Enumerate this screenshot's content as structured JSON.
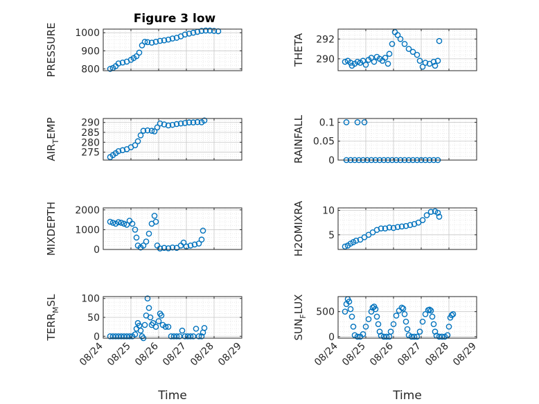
{
  "chart_data": [
    {
      "id": "pressure",
      "type": "scatter",
      "title": "Figure 3 low",
      "ylabel": [
        "PRESSURE"
      ],
      "xlabel": "",
      "ylim": [
        790,
        1020
      ],
      "yticks": [
        800,
        900,
        1000
      ],
      "xlim": [
        0,
        5
      ],
      "xticks": [
        0,
        1,
        2,
        3,
        4,
        5
      ],
      "xticklabels": [],
      "grid": true,
      "points": [
        [
          0.25,
          800
        ],
        [
          0.35,
          805
        ],
        [
          0.45,
          815
        ],
        [
          0.55,
          830
        ],
        [
          0.7,
          835
        ],
        [
          0.85,
          840
        ],
        [
          1.0,
          850
        ],
        [
          1.1,
          860
        ],
        [
          1.2,
          870
        ],
        [
          1.3,
          890
        ],
        [
          1.4,
          930
        ],
        [
          1.5,
          950
        ],
        [
          1.6,
          948
        ],
        [
          1.75,
          945
        ],
        [
          1.9,
          950
        ],
        [
          2.05,
          955
        ],
        [
          2.2,
          958
        ],
        [
          2.35,
          962
        ],
        [
          2.5,
          968
        ],
        [
          2.65,
          972
        ],
        [
          2.8,
          980
        ],
        [
          2.95,
          990
        ],
        [
          3.1,
          995
        ],
        [
          3.25,
          1000
        ],
        [
          3.4,
          1005
        ],
        [
          3.55,
          1010
        ],
        [
          3.7,
          1012
        ],
        [
          3.85,
          1012
        ],
        [
          4.0,
          1010
        ],
        [
          4.15,
          1008
        ]
      ]
    },
    {
      "id": "theta",
      "type": "scatter",
      "title": "",
      "ylabel": [
        "THETA"
      ],
      "xlabel": "",
      "ylim": [
        288.8,
        293
      ],
      "yticks": [
        290,
        292
      ],
      "xlim": [
        0,
        5
      ],
      "xticks": [
        0,
        1,
        2,
        3,
        4,
        5
      ],
      "xticklabels": [],
      "grid": true,
      "points": [
        [
          0.25,
          289.7
        ],
        [
          0.35,
          289.8
        ],
        [
          0.45,
          289.6
        ],
        [
          0.5,
          289.3
        ],
        [
          0.6,
          289.5
        ],
        [
          0.7,
          289.7
        ],
        [
          0.8,
          289.6
        ],
        [
          0.9,
          289.8
        ],
        [
          1.0,
          289.4
        ],
        [
          1.1,
          289.9
        ],
        [
          1.2,
          290.1
        ],
        [
          1.3,
          289.7
        ],
        [
          1.4,
          290.2
        ],
        [
          1.5,
          290.0
        ],
        [
          1.6,
          289.8
        ],
        [
          1.7,
          290.1
        ],
        [
          1.8,
          289.5
        ],
        [
          1.85,
          290.5
        ],
        [
          1.95,
          291.5
        ],
        [
          2.05,
          292.7
        ],
        [
          2.15,
          292.4
        ],
        [
          2.25,
          292.0
        ],
        [
          2.4,
          291.5
        ],
        [
          2.55,
          291.0
        ],
        [
          2.7,
          290.7
        ],
        [
          2.85,
          290.4
        ],
        [
          2.95,
          289.8
        ],
        [
          3.05,
          289.2
        ],
        [
          3.15,
          289.6
        ],
        [
          3.3,
          289.5
        ],
        [
          3.45,
          289.7
        ],
        [
          3.5,
          289.3
        ],
        [
          3.6,
          289.8
        ],
        [
          3.65,
          291.8
        ]
      ]
    },
    {
      "id": "airtemp",
      "type": "scatter",
      "title": "",
      "ylabel": [
        "AIR",
        "T",
        "EMP"
      ],
      "xlabel": "",
      "ylim": [
        271,
        292
      ],
      "yticks": [
        275,
        280,
        285,
        290
      ],
      "xlim": [
        0,
        5
      ],
      "xticks": [
        0,
        1,
        2,
        3,
        4,
        5
      ],
      "xticklabels": [],
      "grid": true,
      "points": [
        [
          0.25,
          272.5
        ],
        [
          0.35,
          273.5
        ],
        [
          0.45,
          274.5
        ],
        [
          0.55,
          275.5
        ],
        [
          0.7,
          276
        ],
        [
          0.85,
          276.5
        ],
        [
          1.0,
          277.5
        ],
        [
          1.15,
          278.5
        ],
        [
          1.25,
          280.5
        ],
        [
          1.35,
          283.5
        ],
        [
          1.45,
          285.8
        ],
        [
          1.6,
          286
        ],
        [
          1.75,
          285.8
        ],
        [
          1.85,
          285.5
        ],
        [
          1.95,
          287.5
        ],
        [
          2.05,
          289.5
        ],
        [
          2.2,
          289
        ],
        [
          2.35,
          288.5
        ],
        [
          2.5,
          288.8
        ],
        [
          2.65,
          289.2
        ],
        [
          2.8,
          289.5
        ],
        [
          2.95,
          289.7
        ],
        [
          3.1,
          290
        ],
        [
          3.25,
          290
        ],
        [
          3.4,
          290.2
        ],
        [
          3.55,
          290.1
        ],
        [
          3.65,
          291
        ]
      ]
    },
    {
      "id": "rainfall",
      "type": "scatter",
      "title": "",
      "ylabel": [
        "RAINFALL"
      ],
      "xlabel": "",
      "ylim": [
        0,
        0.11
      ],
      "yticks": [
        0,
        0.05,
        0.1
      ],
      "xlim": [
        0,
        5
      ],
      "xticks": [
        0,
        1,
        2,
        3,
        4,
        5
      ],
      "xticklabels": [],
      "grid": true,
      "points": [
        [
          0.3,
          0.1
        ],
        [
          0.7,
          0.1
        ],
        [
          0.95,
          0.1
        ],
        [
          0.3,
          0
        ],
        [
          0.45,
          0
        ],
        [
          0.6,
          0
        ],
        [
          0.75,
          0
        ],
        [
          0.9,
          0
        ],
        [
          1.05,
          0
        ],
        [
          1.2,
          0
        ],
        [
          1.35,
          0
        ],
        [
          1.5,
          0
        ],
        [
          1.65,
          0
        ],
        [
          1.8,
          0
        ],
        [
          1.95,
          0
        ],
        [
          2.1,
          0
        ],
        [
          2.25,
          0
        ],
        [
          2.4,
          0
        ],
        [
          2.55,
          0
        ],
        [
          2.7,
          0
        ],
        [
          2.85,
          0
        ],
        [
          3.0,
          0
        ],
        [
          3.15,
          0
        ],
        [
          3.3,
          0
        ],
        [
          3.45,
          0
        ],
        [
          3.6,
          0
        ]
      ]
    },
    {
      "id": "mixdepth",
      "type": "scatter",
      "title": "",
      "ylabel": [
        "MIXDEPTH"
      ],
      "xlabel": "",
      "ylim": [
        0,
        2100
      ],
      "yticks": [
        0,
        1000,
        2000
      ],
      "xlim": [
        0,
        5
      ],
      "xticks": [
        0,
        1,
        2,
        3,
        4,
        5
      ],
      "xticklabels": [],
      "grid": true,
      "points": [
        [
          0.25,
          1400
        ],
        [
          0.35,
          1350
        ],
        [
          0.45,
          1300
        ],
        [
          0.55,
          1380
        ],
        [
          0.65,
          1350
        ],
        [
          0.75,
          1300
        ],
        [
          0.85,
          1250
        ],
        [
          0.95,
          1450
        ],
        [
          1.05,
          1300
        ],
        [
          1.15,
          1000
        ],
        [
          1.2,
          600
        ],
        [
          1.25,
          200
        ],
        [
          1.35,
          100
        ],
        [
          1.45,
          200
        ],
        [
          1.55,
          400
        ],
        [
          1.65,
          800
        ],
        [
          1.75,
          1300
        ],
        [
          1.85,
          1700
        ],
        [
          1.9,
          1400
        ],
        [
          1.95,
          200
        ],
        [
          2.05,
          50
        ],
        [
          2.2,
          80
        ],
        [
          2.35,
          60
        ],
        [
          2.5,
          100
        ],
        [
          2.65,
          80
        ],
        [
          2.8,
          200
        ],
        [
          2.9,
          350
        ],
        [
          3.0,
          150
        ],
        [
          3.15,
          200
        ],
        [
          3.3,
          250
        ],
        [
          3.45,
          300
        ],
        [
          3.55,
          500
        ],
        [
          3.6,
          950
        ]
      ]
    },
    {
      "id": "h2omixra",
      "type": "scatter",
      "title": "",
      "ylabel": [
        "H2OMIXRA"
      ],
      "xlabel": "",
      "ylim": [
        2,
        10.5
      ],
      "yticks": [
        5,
        10
      ],
      "xlim": [
        0,
        5
      ],
      "xticks": [
        0,
        1,
        2,
        3,
        4,
        5
      ],
      "xticklabels": [],
      "grid": true,
      "points": [
        [
          0.25,
          2.6
        ],
        [
          0.35,
          2.8
        ],
        [
          0.45,
          3.2
        ],
        [
          0.55,
          3.5
        ],
        [
          0.65,
          3.8
        ],
        [
          0.8,
          4.0
        ],
        [
          0.95,
          4.5
        ],
        [
          1.1,
          5.0
        ],
        [
          1.25,
          5.5
        ],
        [
          1.4,
          6.0
        ],
        [
          1.55,
          6.3
        ],
        [
          1.7,
          6.3
        ],
        [
          1.85,
          6.5
        ],
        [
          2.0,
          6.4
        ],
        [
          2.15,
          6.6
        ],
        [
          2.3,
          6.7
        ],
        [
          2.45,
          6.8
        ],
        [
          2.6,
          7.0
        ],
        [
          2.75,
          7.2
        ],
        [
          2.9,
          7.5
        ],
        [
          3.05,
          8.0
        ],
        [
          3.2,
          9.0
        ],
        [
          3.35,
          9.7
        ],
        [
          3.5,
          9.8
        ],
        [
          3.6,
          9.5
        ],
        [
          3.65,
          8.7
        ]
      ]
    },
    {
      "id": "terrmsl",
      "type": "scatter",
      "title": "",
      "ylabel": [
        "TERR",
        "M",
        "SL"
      ],
      "xlabel": "Time",
      "ylim": [
        -5,
        105
      ],
      "yticks": [
        0,
        50,
        100
      ],
      "xlim": [
        0,
        5
      ],
      "xticks": [
        0,
        1,
        2,
        3,
        4,
        5
      ],
      "xticklabels": [
        "08/24",
        "08/25",
        "08/26",
        "08/27",
        "08/28",
        "08/29"
      ],
      "grid": true,
      "points": [
        [
          0.25,
          0
        ],
        [
          0.35,
          0
        ],
        [
          0.45,
          0
        ],
        [
          0.55,
          0
        ],
        [
          0.65,
          0
        ],
        [
          0.75,
          0
        ],
        [
          0.85,
          0
        ],
        [
          0.95,
          0
        ],
        [
          1.05,
          0
        ],
        [
          1.15,
          5
        ],
        [
          1.2,
          20
        ],
        [
          1.25,
          35
        ],
        [
          1.3,
          28
        ],
        [
          1.35,
          15
        ],
        [
          1.4,
          0
        ],
        [
          1.45,
          -5
        ],
        [
          1.5,
          30
        ],
        [
          1.55,
          55
        ],
        [
          1.6,
          100
        ],
        [
          1.65,
          75
        ],
        [
          1.7,
          50
        ],
        [
          1.75,
          30
        ],
        [
          1.8,
          35
        ],
        [
          1.9,
          25
        ],
        [
          2.0,
          40
        ],
        [
          2.05,
          60
        ],
        [
          2.1,
          55
        ],
        [
          2.15,
          30
        ],
        [
          2.25,
          25
        ],
        [
          2.35,
          25
        ],
        [
          2.45,
          0
        ],
        [
          2.55,
          0
        ],
        [
          2.65,
          0
        ],
        [
          2.75,
          0
        ],
        [
          2.85,
          15
        ],
        [
          2.95,
          0
        ],
        [
          3.05,
          0
        ],
        [
          3.15,
          0
        ],
        [
          3.25,
          0
        ],
        [
          3.35,
          20
        ],
        [
          3.45,
          0
        ],
        [
          3.55,
          0
        ],
        [
          3.6,
          10
        ],
        [
          3.65,
          22
        ]
      ]
    },
    {
      "id": "sunflux",
      "type": "scatter",
      "title": "",
      "ylabel": [
        "SUN",
        "F",
        "LUX"
      ],
      "xlabel": "Time",
      "ylim": [
        -30,
        800
      ],
      "yticks": [
        0,
        500
      ],
      "xlim": [
        0,
        5
      ],
      "xticks": [
        0,
        1,
        2,
        3,
        4,
        5
      ],
      "xticklabels": [
        "08/24",
        "08/25",
        "08/26",
        "08/27",
        "08/28",
        "08/29"
      ],
      "grid": true,
      "points": [
        [
          0.25,
          500
        ],
        [
          0.3,
          650
        ],
        [
          0.35,
          750
        ],
        [
          0.4,
          700
        ],
        [
          0.45,
          550
        ],
        [
          0.5,
          400
        ],
        [
          0.55,
          200
        ],
        [
          0.6,
          30
        ],
        [
          0.7,
          0
        ],
        [
          0.8,
          0
        ],
        [
          0.9,
          50
        ],
        [
          1.0,
          200
        ],
        [
          1.1,
          350
        ],
        [
          1.2,
          500
        ],
        [
          1.25,
          580
        ],
        [
          1.3,
          600
        ],
        [
          1.35,
          550
        ],
        [
          1.4,
          400
        ],
        [
          1.45,
          250
        ],
        [
          1.5,
          100
        ],
        [
          1.55,
          20
        ],
        [
          1.65,
          0
        ],
        [
          1.75,
          0
        ],
        [
          1.85,
          0
        ],
        [
          1.9,
          100
        ],
        [
          2.0,
          250
        ],
        [
          2.1,
          420
        ],
        [
          2.2,
          520
        ],
        [
          2.3,
          580
        ],
        [
          2.35,
          560
        ],
        [
          2.4,
          450
        ],
        [
          2.45,
          300
        ],
        [
          2.5,
          150
        ],
        [
          2.55,
          30
        ],
        [
          2.65,
          0
        ],
        [
          2.75,
          0
        ],
        [
          2.85,
          0
        ],
        [
          2.95,
          100
        ],
        [
          3.05,
          300
        ],
        [
          3.15,
          450
        ],
        [
          3.25,
          530
        ],
        [
          3.3,
          540
        ],
        [
          3.35,
          520
        ],
        [
          3.4,
          400
        ],
        [
          3.45,
          250
        ],
        [
          3.5,
          100
        ],
        [
          3.55,
          20
        ],
        [
          3.65,
          0
        ],
        [
          3.75,
          0
        ],
        [
          3.85,
          0
        ],
        [
          3.95,
          30
        ],
        [
          4.0,
          200
        ],
        [
          4.05,
          380
        ],
        [
          4.1,
          430
        ],
        [
          4.15,
          450
        ]
      ]
    }
  ],
  "colors": {
    "marker": "#0072BD",
    "axis": "#262626",
    "grid": "#dcdcdc"
  }
}
